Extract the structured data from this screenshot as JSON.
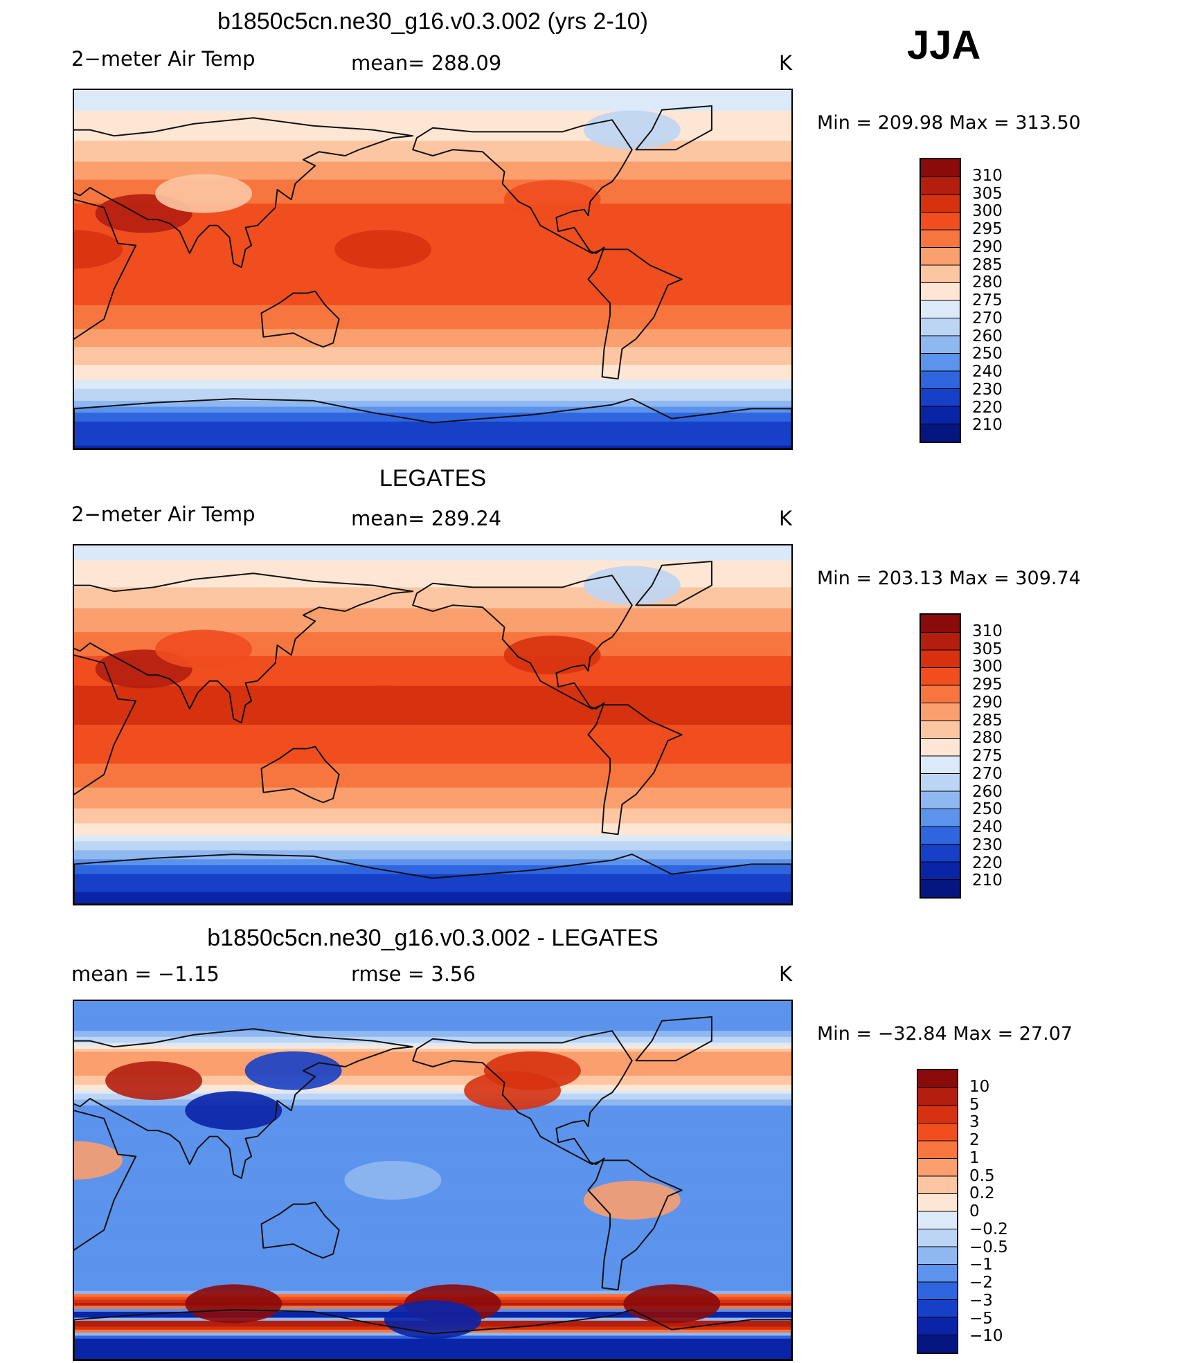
{
  "season": "JJA",
  "coast_color": "#111111",
  "panels": [
    {
      "title": "b1850c5cn.ne30_g16.v0.3.002 (yrs 2-10)",
      "left_label": "2−meter Air Temp",
      "center_label": "mean=  288.09",
      "units": "K",
      "minmax": "Min  =  209.98  Max  =  313.50",
      "colorbar_labels": [
        "310",
        "305",
        "300",
        "295",
        "290",
        "285",
        "280",
        "275",
        "270",
        "260",
        "250",
        "240",
        "230",
        "220",
        "210"
      ],
      "colorbar_colors": [
        "#8b0a0a",
        "#b41e0f",
        "#d7320f",
        "#f04e1f",
        "#f7763f",
        "#fa9f6e",
        "#fcc6a2",
        "#fee6d4",
        "#dbe9f8",
        "#bcd5f4",
        "#8fb8f0",
        "#5c93ec",
        "#2f66e0",
        "#1640c8",
        "#0a24a8",
        "#061680"
      ],
      "chart_data": {
        "type": "heatmap",
        "field": "2-meter air temperature, JJA mean",
        "units": "K",
        "mean": 288.09,
        "min": 209.98,
        "max": 313.5,
        "contour_levels": [
          210,
          220,
          230,
          240,
          250,
          260,
          270,
          275,
          280,
          285,
          290,
          295,
          300,
          305,
          310
        ],
        "zonal_profile_lat_K": [
          [
            90,
            272
          ],
          [
            75,
            276
          ],
          [
            60,
            282
          ],
          [
            45,
            290
          ],
          [
            30,
            296
          ],
          [
            15,
            300
          ],
          [
            0,
            299
          ],
          [
            -15,
            296
          ],
          [
            -30,
            290
          ],
          [
            -45,
            282
          ],
          [
            -55,
            276
          ],
          [
            -65,
            262
          ],
          [
            -75,
            232
          ],
          [
            -90,
            218
          ]
        ]
      }
    },
    {
      "title": "LEGATES",
      "left_label": "2−meter Air Temp",
      "center_label": "mean=  289.24",
      "units": "K",
      "minmax": "Min  =  203.13  Max  =  309.74",
      "colorbar_labels": [
        "310",
        "305",
        "300",
        "295",
        "290",
        "285",
        "280",
        "275",
        "270",
        "260",
        "250",
        "240",
        "230",
        "220",
        "210"
      ],
      "colorbar_colors": [
        "#8b0a0a",
        "#b41e0f",
        "#d7320f",
        "#f04e1f",
        "#f7763f",
        "#fa9f6e",
        "#fcc6a2",
        "#fee6d4",
        "#dbe9f8",
        "#bcd5f4",
        "#8fb8f0",
        "#5c93ec",
        "#2f66e0",
        "#1640c8",
        "#0a24a8",
        "#061680"
      ],
      "chart_data": {
        "type": "heatmap",
        "field": "2-meter air temperature, JJA mean (observations)",
        "units": "K",
        "mean": 289.24,
        "min": 203.13,
        "max": 309.74,
        "contour_levels": [
          210,
          220,
          230,
          240,
          250,
          260,
          270,
          275,
          280,
          285,
          290,
          295,
          300,
          305,
          310
        ],
        "zonal_profile_lat_K": [
          [
            90,
            273
          ],
          [
            75,
            277
          ],
          [
            60,
            284
          ],
          [
            45,
            291
          ],
          [
            30,
            297
          ],
          [
            15,
            301
          ],
          [
            0,
            300
          ],
          [
            -15,
            297
          ],
          [
            -30,
            291
          ],
          [
            -45,
            283
          ],
          [
            -55,
            277
          ],
          [
            -65,
            255
          ],
          [
            -75,
            228
          ],
          [
            -90,
            214
          ]
        ]
      }
    },
    {
      "title": "b1850c5cn.ne30_g16.v0.3.002 - LEGATES",
      "left_label": "mean =    −1.15",
      "center_label": "rmse =     3.56",
      "units": "K",
      "minmax": "Min  =  −32.84  Max  =    27.07",
      "colorbar_labels": [
        "10",
        "5",
        "3",
        "2",
        "1",
        "0.5",
        "0.2",
        "0",
        "−0.2",
        "−0.5",
        "−1",
        "−2",
        "−3",
        "−5",
        "−10"
      ],
      "colorbar_colors": [
        "#8b0a0a",
        "#b41e0f",
        "#d7320f",
        "#f04e1f",
        "#f7763f",
        "#fa9f6e",
        "#fcc6a2",
        "#fee6d4",
        "#dbe9f8",
        "#bcd5f4",
        "#8fb8f0",
        "#5c93ec",
        "#2f66e0",
        "#1640c8",
        "#0a24a8",
        "#061680"
      ],
      "chart_data": {
        "type": "heatmap",
        "field": "2-meter air temperature difference (model - LEGATES), JJA",
        "units": "K",
        "mean": -1.15,
        "rmse": 3.56,
        "min": -32.84,
        "max": 27.07,
        "contour_levels": [
          -10,
          -5,
          -3,
          -2,
          -1,
          -0.5,
          -0.2,
          0,
          0.2,
          0.5,
          1,
          2,
          3,
          5,
          10
        ],
        "zonal_profile_lat_K": [
          [
            90,
            -2
          ],
          [
            75,
            -1
          ],
          [
            60,
            1
          ],
          [
            45,
            0
          ],
          [
            30,
            -2
          ],
          [
            15,
            -1.5
          ],
          [
            0,
            -1
          ],
          [
            -15,
            -1.5
          ],
          [
            -30,
            -1.5
          ],
          [
            -45,
            -1.5
          ],
          [
            -55,
            -2
          ],
          [
            -62,
            6
          ],
          [
            -68,
            -8
          ],
          [
            -72,
            8
          ],
          [
            -80,
            -5
          ],
          [
            -90,
            -6
          ]
        ]
      }
    }
  ]
}
